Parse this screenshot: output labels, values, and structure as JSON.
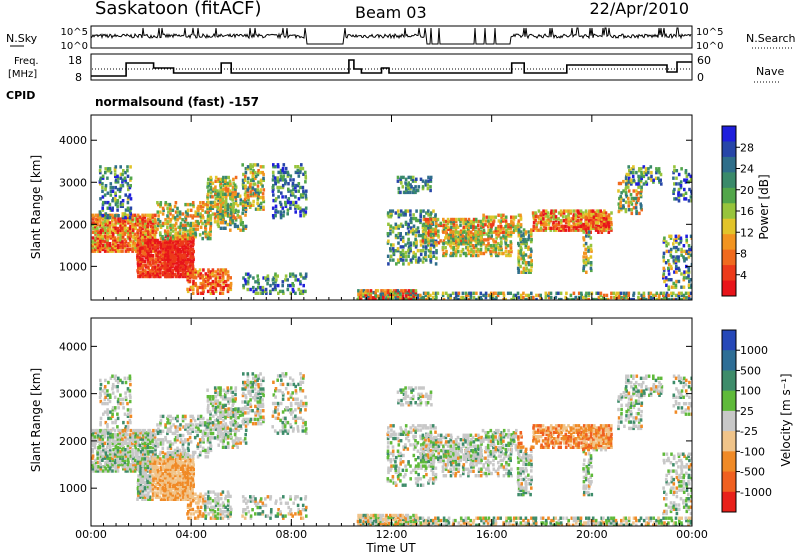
{
  "header": {
    "station": "Saskatoon (fitACF)",
    "beam": "Beam 03",
    "date": "22/Apr/2010"
  },
  "panels": {
    "nsky": {
      "label": "N.Sky",
      "ticks": [
        "10^5",
        "10^0"
      ]
    },
    "nsearch": {
      "label": "N.Search",
      "ticks": [
        "10^5",
        "10^0"
      ]
    },
    "freq": {
      "label_line1": "Freq.",
      "label_line2": "[MHz]",
      "ticks": [
        "18",
        "8"
      ]
    },
    "nave": {
      "label": "Nave",
      "ticks": [
        "60",
        "0"
      ]
    },
    "cpid": {
      "label": "CPID",
      "value": "normalsound (fast) -157"
    }
  },
  "chart_data": [
    {
      "type": "heatmap",
      "name": "power",
      "ylabel": "Slant Range [km]",
      "y_ticks": [
        1000,
        2000,
        3000,
        4000
      ],
      "ylim": [
        200,
        4600
      ],
      "x_ticks": [
        "00:00",
        "04:00",
        "08:00",
        "12:00",
        "16:00",
        "20:00",
        "00:00"
      ],
      "xlim_hours": [
        0,
        24
      ],
      "colorbar": {
        "label": "Power [dB]",
        "ticks": [
          "28",
          "24",
          "20",
          "16",
          "12",
          "8",
          "4"
        ],
        "colors": [
          "#1f1fdc",
          "#2746a8",
          "#2f6e8a",
          "#3a8a6a",
          "#52a64a",
          "#97c43c",
          "#e2c42a",
          "#f29420",
          "#f06a1e",
          "#ec3a1a",
          "#e8141a"
        ]
      }
    },
    {
      "type": "heatmap",
      "name": "velocity",
      "ylabel": "Slant Range [km]",
      "y_ticks": [
        1000,
        2000,
        3000,
        4000
      ],
      "ylim": [
        200,
        4600
      ],
      "x_ticks": [
        "00:00",
        "04:00",
        "08:00",
        "12:00",
        "16:00",
        "20:00",
        "00:00"
      ],
      "xlabel": "Time UT",
      "xlim_hours": [
        0,
        24
      ],
      "colorbar": {
        "label": "Velocity [m s⁻¹]",
        "ticks": [
          "1000",
          "500",
          "100",
          "25",
          "-25",
          "-100",
          "-500",
          "-1000"
        ],
        "colors": [
          "#2648b8",
          "#2e6e96",
          "#3e8c6a",
          "#5fba3a",
          "#c8c8c8",
          "#f0c48a",
          "#f08a26",
          "#f06020",
          "#e8201a"
        ]
      }
    }
  ]
}
